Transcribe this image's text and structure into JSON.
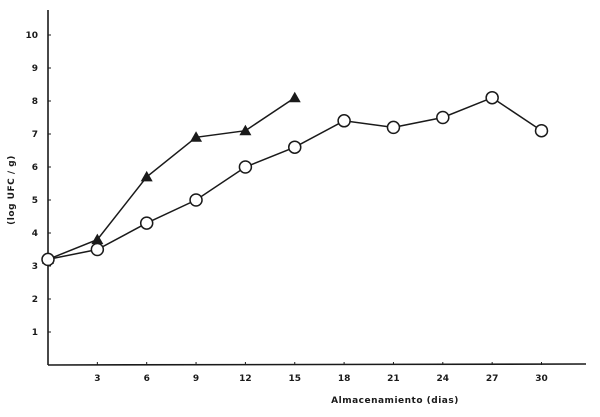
{
  "chart_data": {
    "type": "line",
    "title": "",
    "xlabel": "Almacenamiento (dias)",
    "ylabel": "(log UFC / g)",
    "xlim": [
      0,
      33
    ],
    "ylim": [
      0,
      10.5
    ],
    "x_ticks": [
      3,
      6,
      9,
      12,
      15,
      18,
      21,
      24,
      27,
      30
    ],
    "y_ticks": [
      1,
      2,
      3,
      4,
      5,
      6,
      7,
      8,
      9,
      10
    ],
    "grid": false,
    "legend": null,
    "series": [
      {
        "name": "triangles",
        "marker": "filled-triangle",
        "x": [
          0,
          3,
          6,
          9,
          12,
          15
        ],
        "values": [
          3.2,
          3.8,
          5.7,
          6.9,
          7.1,
          8.1
        ]
      },
      {
        "name": "circles",
        "marker": "open-circle",
        "x": [
          0,
          3,
          6,
          9,
          12,
          15,
          18,
          21,
          24,
          27,
          30
        ],
        "values": [
          3.2,
          3.5,
          4.3,
          5.0,
          6.0,
          6.6,
          7.4,
          7.2,
          7.5,
          8.1,
          7.1
        ]
      }
    ]
  },
  "colors": {
    "ink": "#1a1a1a",
    "background": "#ffffff"
  }
}
